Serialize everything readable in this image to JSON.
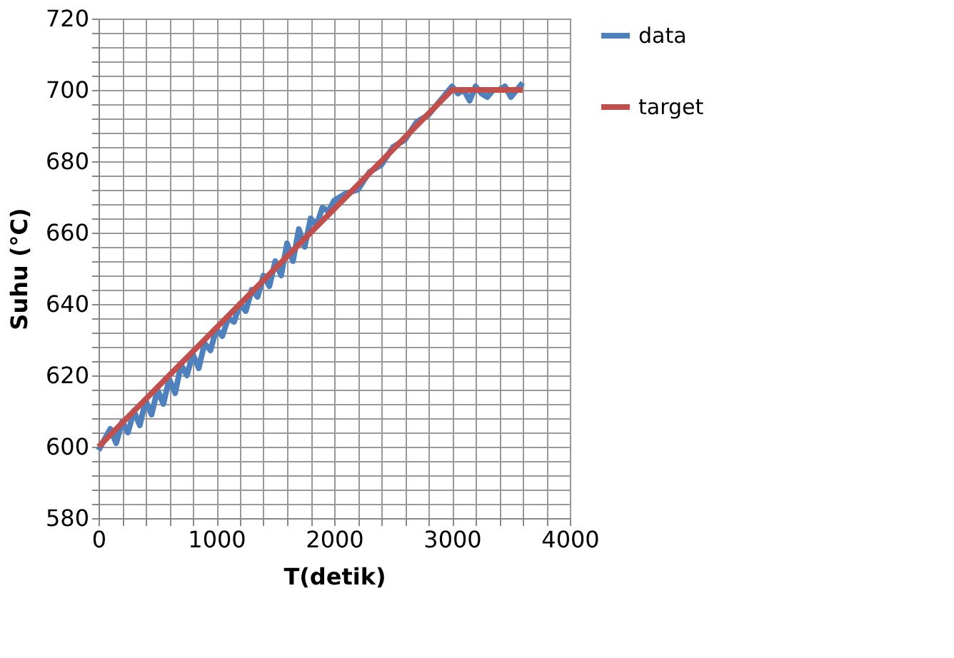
{
  "chart_data": {
    "type": "line",
    "xlabel": "T(detik)",
    "ylabel": "Suhu (°C)",
    "x": [
      0,
      50,
      100,
      150,
      200,
      250,
      300,
      350,
      400,
      450,
      500,
      550,
      600,
      650,
      700,
      750,
      800,
      850,
      900,
      950,
      1000,
      1050,
      1100,
      1150,
      1200,
      1250,
      1300,
      1350,
      1400,
      1450,
      1500,
      1550,
      1600,
      1650,
      1700,
      1750,
      1800,
      1850,
      1900,
      1950,
      2000,
      2100,
      2200,
      2300,
      2400,
      2500,
      2600,
      2700,
      2800,
      2900,
      3000,
      3050,
      3100,
      3150,
      3200,
      3250,
      3300,
      3350,
      3400,
      3450,
      3500,
      3550,
      3600
    ],
    "series": [
      {
        "name": "data",
        "color": "#4f81bd",
        "values": [
          599,
          602,
          605,
          601,
          607,
          604,
          610,
          606,
          613,
          609,
          616,
          612,
          619,
          615,
          623,
          620,
          626,
          622,
          629,
          627,
          633,
          631,
          636,
          635,
          640,
          638,
          644,
          642,
          648,
          645,
          652,
          648,
          657,
          652,
          661,
          656,
          664,
          662,
          667,
          666,
          669,
          671,
          672,
          677,
          679,
          684,
          686,
          691,
          693,
          697,
          701,
          699,
          700,
          697,
          701,
          699,
          698,
          700,
          700,
          701,
          698,
          700,
          702
        ]
      },
      {
        "name": "target",
        "color": "#c0504d",
        "x": [
          0,
          3000,
          3600
        ],
        "values": [
          600,
          700,
          700
        ]
      }
    ],
    "xlim": [
      0,
      4000
    ],
    "ylim": [
      580,
      720
    ],
    "xticks": [
      0,
      {
        "value": 200,
        "label": null
      },
      {
        "value": 400,
        "label": null
      },
      {
        "value": 600,
        "label": null
      },
      {
        "value": 800,
        "label": null
      },
      1000,
      {
        "value": 1200,
        "label": null
      },
      {
        "value": 1400,
        "label": null
      },
      {
        "value": 1600,
        "label": null
      },
      {
        "value": 1800,
        "label": null
      },
      2000,
      {
        "value": 2200,
        "label": null
      },
      {
        "value": 2400,
        "label": null
      },
      {
        "value": 2600,
        "label": null
      },
      {
        "value": 2800,
        "label": null
      },
      3000,
      {
        "value": 3200,
        "label": null
      },
      {
        "value": 3400,
        "label": null
      },
      {
        "value": 3600,
        "label": null
      },
      {
        "value": 3800,
        "label": null
      },
      4000
    ],
    "yticks": [
      580,
      {
        "value": 584,
        "label": null
      },
      {
        "value": 588,
        "label": null
      },
      {
        "value": 592,
        "label": null
      },
      {
        "value": 596,
        "label": null
      },
      600,
      {
        "value": 604,
        "label": null
      },
      {
        "value": 608,
        "label": null
      },
      {
        "value": 612,
        "label": null
      },
      {
        "value": 616,
        "label": null
      },
      620,
      {
        "value": 624,
        "label": null
      },
      {
        "value": 628,
        "label": null
      },
      {
        "value": 632,
        "label": null
      },
      {
        "value": 636,
        "label": null
      },
      640,
      {
        "value": 644,
        "label": null
      },
      {
        "value": 648,
        "label": null
      },
      {
        "value": 652,
        "label": null
      },
      {
        "value": 656,
        "label": null
      },
      660,
      {
        "value": 664,
        "label": null
      },
      {
        "value": 668,
        "label": null
      },
      {
        "value": 672,
        "label": null
      },
      {
        "value": 676,
        "label": null
      },
      680,
      {
        "value": 684,
        "label": null
      },
      {
        "value": 688,
        "label": null
      },
      {
        "value": 692,
        "label": null
      },
      {
        "value": 696,
        "label": null
      },
      700,
      {
        "value": 704,
        "label": null
      },
      {
        "value": 708,
        "label": null
      },
      {
        "value": 712,
        "label": null
      },
      {
        "value": 716,
        "label": null
      },
      720
    ],
    "grid": true,
    "legend": "right",
    "marker": "none",
    "line_style": "solid"
  }
}
